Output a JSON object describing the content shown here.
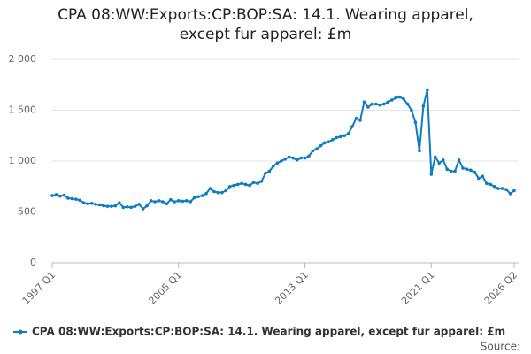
{
  "chart_data": {
    "type": "line",
    "title": "CPA 08:WW:Exports:CP:BOP:SA: 14.1. Wearing apparel, except fur apparel: £m",
    "source_label": "Source:",
    "categories": [
      "1997 Q1",
      null,
      null,
      null,
      null,
      null,
      null,
      null,
      null,
      null,
      null,
      null,
      null,
      null,
      null,
      null,
      null,
      null,
      null,
      null,
      null,
      null,
      null,
      null,
      null,
      null,
      null,
      null,
      null,
      null,
      null,
      null,
      "2005 Q1",
      null,
      null,
      null,
      null,
      null,
      null,
      null,
      null,
      null,
      null,
      null,
      null,
      null,
      null,
      null,
      null,
      null,
      null,
      null,
      null,
      null,
      null,
      null,
      null,
      null,
      null,
      null,
      null,
      null,
      null,
      null,
      "2013 Q1",
      null,
      null,
      null,
      null,
      null,
      null,
      null,
      null,
      null,
      null,
      null,
      null,
      null,
      null,
      null,
      null,
      null,
      null,
      null,
      null,
      null,
      null,
      null,
      null,
      null,
      null,
      null,
      null,
      null,
      null,
      null,
      "2021 Q1",
      null,
      null,
      null,
      null,
      null,
      null,
      null,
      null,
      null,
      null,
      null,
      null,
      null,
      null,
      null,
      null,
      null,
      null,
      null,
      null,
      "2026 Q2"
    ],
    "series": [
      {
        "name": "CPA 08:WW:Exports:CP:BOP:SA: 14.1. Wearing apparel, except fur apparel: £m",
        "color": "#0e7cc0",
        "values": [
          660,
          670,
          655,
          665,
          635,
          630,
          625,
          615,
          590,
          580,
          585,
          575,
          570,
          560,
          555,
          555,
          560,
          590,
          545,
          550,
          545,
          555,
          575,
          530,
          560,
          610,
          600,
          610,
          600,
          580,
          620,
          600,
          610,
          605,
          610,
          600,
          640,
          650,
          660,
          680,
          730,
          700,
          690,
          690,
          710,
          750,
          760,
          770,
          780,
          770,
          760,
          790,
          780,
          800,
          880,
          900,
          950,
          980,
          1000,
          1020,
          1040,
          1030,
          1010,
          1030,
          1030,
          1050,
          1100,
          1120,
          1150,
          1180,
          1190,
          1210,
          1230,
          1240,
          1250,
          1270,
          1340,
          1420,
          1400,
          1580,
          1530,
          1560,
          1560,
          1550,
          1560,
          1580,
          1600,
          1620,
          1630,
          1610,
          1560,
          1500,
          1380,
          1100,
          1540,
          1700,
          870,
          1040,
          980,
          1010,
          920,
          900,
          900,
          1010,
          930,
          920,
          910,
          890,
          830,
          850,
          780,
          770,
          750,
          730,
          730,
          720,
          680,
          710
        ]
      }
    ],
    "ylim": [
      0,
      2000
    ],
    "yticks": [
      0,
      {
        "value": 500,
        "label": "500"
      },
      {
        "value": 1000,
        "label": "1 000"
      },
      {
        "value": 1500,
        "label": "1 500"
      },
      {
        "value": 2000,
        "label": "2 000"
      }
    ],
    "grid": true
  }
}
